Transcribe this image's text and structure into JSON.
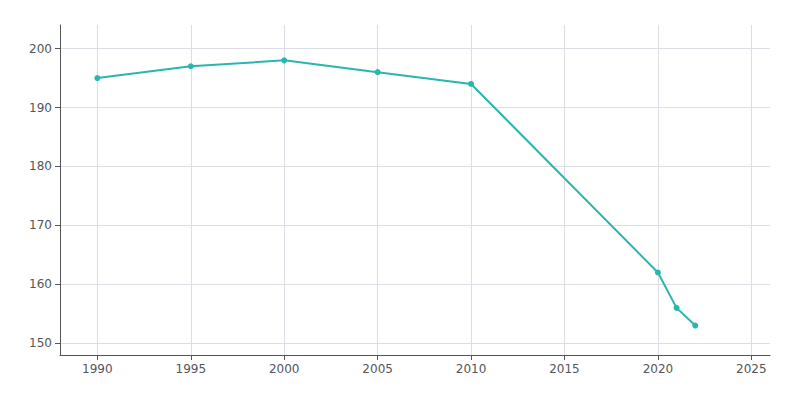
{
  "chart_data": {
    "type": "line",
    "x": [
      1990,
      1995,
      2000,
      2005,
      2010,
      2020,
      2021,
      2022
    ],
    "values": [
      195,
      197,
      198,
      196,
      194,
      162,
      156,
      153
    ],
    "color": "#2ab5b0",
    "marker": "circle",
    "xlim": [
      1988,
      2026
    ],
    "xticks": [
      1990,
      1995,
      2000,
      2005,
      2010,
      2015,
      2020,
      2025
    ],
    "ylim": [
      148,
      204
    ],
    "yticks": [
      150,
      160,
      170,
      180,
      190,
      200
    ],
    "grid": true
  }
}
